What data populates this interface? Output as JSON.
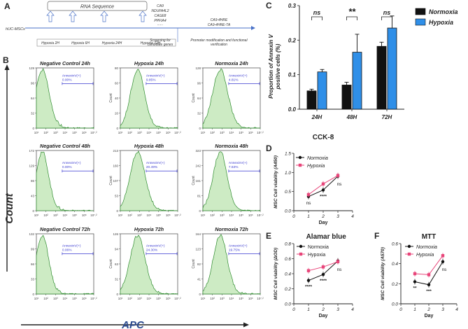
{
  "panels": {
    "A": "A",
    "B": "B",
    "C": "C",
    "D": "D",
    "E": "E",
    "F": "F"
  },
  "panelA": {
    "source": "hUC-MSCs",
    "rna_box": "RNA Sequence",
    "stages": [
      "Hypoxia 2H",
      "Hypoxia 6H",
      "Hypoxia 24H",
      "Hypoxia 72H"
    ],
    "genes": [
      "CA9",
      "NDUFA4L2",
      "CAGE8",
      "PPFIA4",
      "......"
    ],
    "screening": [
      "Screening for",
      "candidate genes"
    ],
    "constructs": [
      "CA9-4HRE",
      "CA9-4HRE-TA"
    ],
    "verification": [
      "Promoter modification and functional",
      "verification"
    ]
  },
  "panelB": {
    "ylabel": "Count",
    "xlabel": "APC",
    "gate_label": "AnnexinV(+)",
    "x_ticks": [
      "10¹",
      "10²",
      "10³",
      "10⁴",
      "10⁵",
      "10⁶",
      "10⁷.²"
    ],
    "plots": [
      {
        "title": "Negative Control 24h",
        "pct": "0.00%",
        "ymax": "129",
        "yticks": [
          "0",
          "32",
          "64",
          "96",
          "129"
        ]
      },
      {
        "title": "Hypoxia 24h",
        "pct": "9.85%",
        "ymax": "80",
        "yticks": [
          "0",
          "20",
          "40",
          "60",
          "80"
        ]
      },
      {
        "title": "Normoxia 24h",
        "pct": "4.81%",
        "ymax": "128",
        "yticks": [
          "0",
          "32",
          "64",
          "96",
          "128"
        ]
      },
      {
        "title": "Negative Control 48h",
        "pct": "0.00%",
        "ymax": "172",
        "yticks": [
          "0",
          "43",
          "86",
          "129",
          "172"
        ]
      },
      {
        "title": "Hypoxia 48h",
        "pct": "20.49%",
        "ymax": "213",
        "yticks": [
          "0",
          "53",
          "107",
          "160",
          "213"
        ]
      },
      {
        "title": "Normoxia 48h",
        "pct": "7.63%",
        "ymax": "323",
        "yticks": [
          "0",
          "81",
          "161",
          "242",
          "323"
        ]
      },
      {
        "title": "Negative Control 72h",
        "pct": "0.06%",
        "ymax": "132",
        "yticks": [
          "0",
          "33",
          "66",
          "99",
          "132"
        ]
      },
      {
        "title": "Hypoxia 72h",
        "pct": "24.30%",
        "ymax": "126",
        "yticks": [
          "0",
          "31",
          "63",
          "94",
          "126"
        ]
      },
      {
        "title": "Normoxia 72h",
        "pct": "19.75%",
        "ymax": "164",
        "yticks": [
          "0",
          "41",
          "82",
          "123",
          "164"
        ]
      }
    ]
  },
  "chart_data": [
    {
      "id": "C",
      "type": "bar",
      "title": "",
      "ylabel": "Proportion of Annexin V positive cells (%)",
      "categories": [
        "24H",
        "48H",
        "72H"
      ],
      "ylim": [
        0,
        0.3
      ],
      "yticks": [
        "0.0",
        "0.1",
        "0.2",
        "0.3"
      ],
      "series": [
        {
          "name": "Normoxia",
          "color": "#111111",
          "values": [
            0.053,
            0.07,
            0.182
          ],
          "errors": [
            0.005,
            0.008,
            0.012
          ]
        },
        {
          "name": "Hypoxia",
          "color": "#2f8fe8",
          "values": [
            0.108,
            0.165,
            0.235
          ],
          "errors": [
            0.007,
            0.052,
            0.035
          ]
        }
      ],
      "significance": [
        "ns",
        "**",
        "ns"
      ]
    },
    {
      "id": "D",
      "type": "line",
      "title": "CCK-8",
      "ylabel": "MSC Cell viability (A450)",
      "xlabel": "Day",
      "xlim": [
        0,
        4
      ],
      "ylim": [
        0,
        1.5
      ],
      "xticks": [
        "0",
        "1",
        "2",
        "3",
        "4"
      ],
      "yticks": [
        "0.0",
        "0.5",
        "1.0",
        "1.5"
      ],
      "x": [
        1,
        2,
        3
      ],
      "series": [
        {
          "name": "Normoxia",
          "color": "#111111",
          "values": [
            0.37,
            0.54,
            0.9
          ]
        },
        {
          "name": "Hypoxia",
          "color": "#e8457a",
          "values": [
            0.42,
            0.7,
            0.92
          ]
        }
      ],
      "annotations": [
        "ns",
        "****",
        "ns"
      ]
    },
    {
      "id": "E",
      "type": "line",
      "title": "Alamar blue",
      "ylabel": "MSC Cell viability (ΔOD)",
      "xlabel": "Day",
      "xlim": [
        0,
        4
      ],
      "ylim": [
        0,
        0.8
      ],
      "xticks": [
        "0",
        "1",
        "2",
        "3",
        "4"
      ],
      "yticks": [
        "0.0",
        "0.2",
        "0.4",
        "0.6",
        "0.8"
      ],
      "x": [
        1,
        2,
        3
      ],
      "series": [
        {
          "name": "Normoxia",
          "color": "#111111",
          "values": [
            0.31,
            0.39,
            0.57
          ]
        },
        {
          "name": "Hypoxia",
          "color": "#e8457a",
          "values": [
            0.44,
            0.49,
            0.56
          ]
        }
      ],
      "annotations": [
        "****",
        "****",
        "ns"
      ]
    },
    {
      "id": "F",
      "type": "line",
      "title": "MTT",
      "ylabel": "MSC Cell viability (A570)",
      "xlabel": "Day",
      "xlim": [
        0,
        4
      ],
      "ylim": [
        0,
        0.6
      ],
      "xticks": [
        "0",
        "1",
        "2",
        "3",
        "4"
      ],
      "yticks": [
        "0.0",
        "0.2",
        "0.4",
        "0.6"
      ],
      "x": [
        1,
        2,
        3
      ],
      "series": [
        {
          "name": "Normoxia",
          "color": "#111111",
          "values": [
            0.22,
            0.19,
            0.42
          ]
        },
        {
          "name": "Hypoxia",
          "color": "#e8457a",
          "values": [
            0.3,
            0.29,
            0.48
          ]
        }
      ],
      "annotations": [
        "**",
        "***",
        "ns"
      ]
    }
  ]
}
